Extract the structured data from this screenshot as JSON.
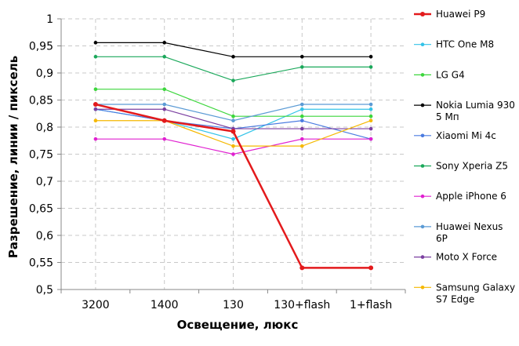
{
  "chart_data": {
    "type": "line",
    "xlabel": "Освещение,  люкс",
    "ylabel": "Разрешение,  линии / пиксель",
    "categories": [
      "3200",
      "1400",
      "130",
      "130+flash",
      "1+flash"
    ],
    "ylim": [
      0.5,
      1
    ],
    "yticks": [
      "0,5",
      "0,55",
      "0,6",
      "0,65",
      "0,7",
      "0,75",
      "0,8",
      "0,85",
      "0,9",
      "0,95",
      "1"
    ],
    "grid": true,
    "legend_position": "right",
    "series": [
      {
        "name": "Huawei P9",
        "label_lines": [
          "Huawei P9"
        ],
        "color": "#e31a1c",
        "bold": true,
        "values": [
          0.842,
          0.812,
          0.792,
          0.54,
          0.54
        ]
      },
      {
        "name": "HTC One M8",
        "label_lines": [
          "HTC One M8"
        ],
        "color": "#33c3e8",
        "bold": false,
        "values": [
          0.833,
          0.812,
          0.778,
          0.833,
          0.833
        ]
      },
      {
        "name": "LG G4",
        "label_lines": [
          "LG G4"
        ],
        "color": "#3cd63c",
        "bold": false,
        "values": [
          0.87,
          0.87,
          0.82,
          0.82,
          0.82
        ]
      },
      {
        "name": "Nokia Lumia 930 5 Мп",
        "label_lines": [
          "Nokia Lumia 930",
          "5 Мп"
        ],
        "color": "#000000",
        "bold": false,
        "values": [
          0.956,
          0.956,
          0.93,
          0.93,
          0.93
        ]
      },
      {
        "name": "Xiaomi Mi 4c",
        "label_lines": [
          "Xiaomi Mi 4c"
        ],
        "color": "#4a7be0",
        "bold": false,
        "values": [
          0.833,
          0.812,
          0.797,
          0.812,
          0.778
        ]
      },
      {
        "name": "Sony Xperia Z5",
        "label_lines": [
          "Sony Xperia Z5"
        ],
        "color": "#1aa85a",
        "bold": false,
        "values": [
          0.93,
          0.93,
          0.886,
          0.911,
          0.911
        ]
      },
      {
        "name": "Apple iPhone 6",
        "label_lines": [
          "Apple iPhone 6"
        ],
        "color": "#e020d0",
        "bold": false,
        "values": [
          0.778,
          0.778,
          0.75,
          0.778,
          0.778
        ]
      },
      {
        "name": "Huawei Nexus 6P",
        "label_lines": [
          "Huawei Nexus",
          "6P"
        ],
        "color": "#5b9bd5",
        "bold": false,
        "values": [
          0.842,
          0.842,
          0.812,
          0.842,
          0.842
        ]
      },
      {
        "name": "Moto X Force",
        "label_lines": [
          "Moto X Force"
        ],
        "color": "#7b3fa0",
        "bold": false,
        "values": [
          0.833,
          0.833,
          0.797,
          0.797,
          0.797
        ]
      },
      {
        "name": "Samsung Galaxy S7 Edge",
        "label_lines": [
          "Samsung Galaxy",
          "S7 Edge"
        ],
        "color": "#f5b800",
        "bold": false,
        "values": [
          0.812,
          0.812,
          0.765,
          0.765,
          0.812
        ]
      }
    ]
  }
}
